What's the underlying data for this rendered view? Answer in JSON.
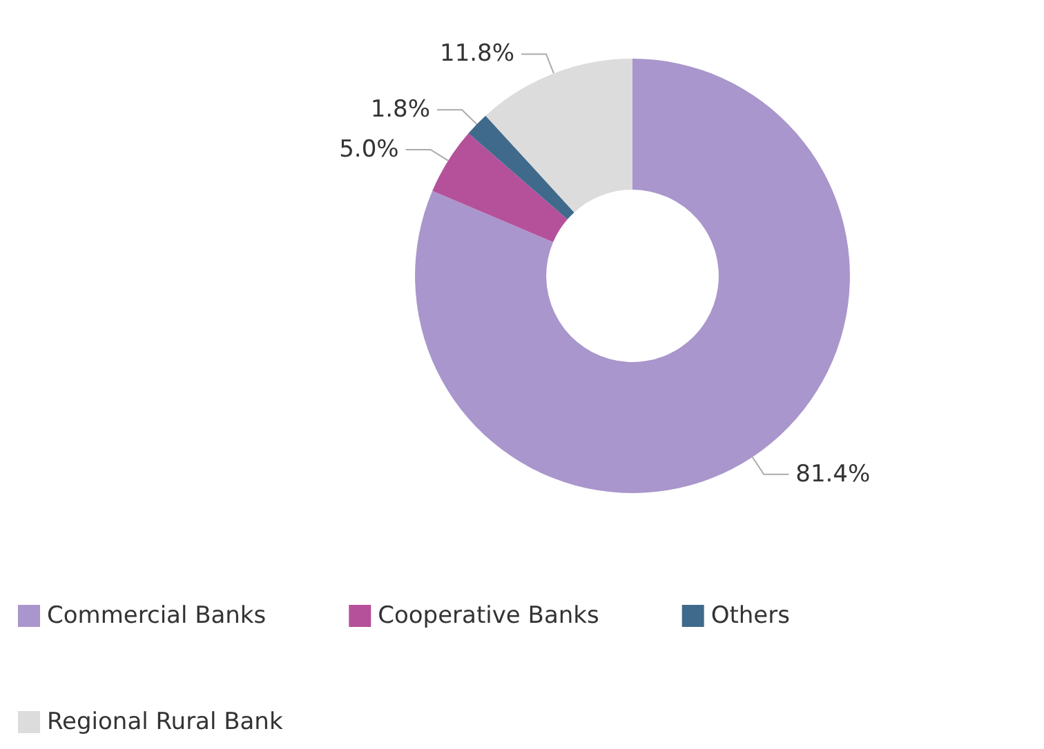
{
  "chart_data": {
    "type": "donut",
    "categories": [
      "Commercial Banks",
      "Cooperative Banks",
      "Others",
      "Regional Rural Bank"
    ],
    "values": [
      81.4,
      5.0,
      1.8,
      11.8
    ],
    "colors": [
      "#a996cc",
      "#b5519a",
      "#3f6a8c",
      "#dcdcdc"
    ],
    "value_labels": [
      "81.4%",
      "5.0%",
      "1.8%",
      "11.8%"
    ],
    "legend": "bottom left"
  }
}
